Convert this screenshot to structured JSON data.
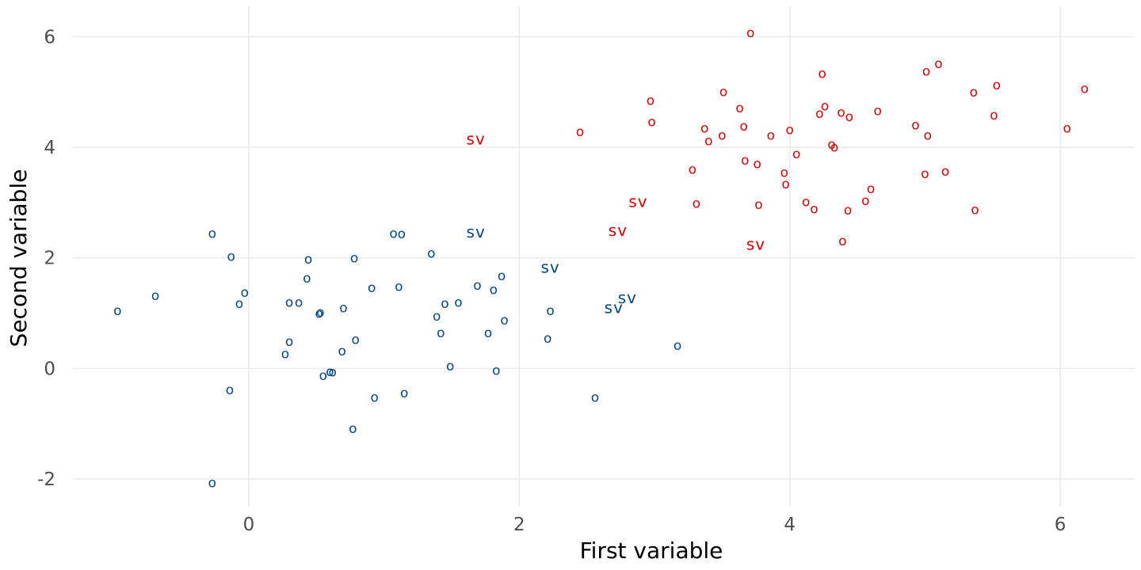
{
  "chart_data": {
    "type": "scatter",
    "title": "",
    "xlabel": "First variable",
    "ylabel": "Second variable",
    "xlim": [
      -1.3,
      6.55
    ],
    "ylim": [
      -2.5,
      6.55
    ],
    "x_ticks": [
      0,
      2,
      4,
      6
    ],
    "y_ticks": [
      -2,
      0,
      2,
      4,
      6
    ],
    "x_tick_labels": [
      "0",
      "2",
      "4",
      "6"
    ],
    "y_tick_labels": [
      "-2",
      "0",
      "2",
      "4",
      "6"
    ],
    "grid": true,
    "legend": "none",
    "point_symbol": "o",
    "support_vector_symbol": "sv",
    "series": [
      {
        "color": "#00468b",
        "points": [
          [
            -0.97,
            1.05
          ],
          [
            -0.69,
            1.32
          ],
          [
            -0.27,
            2.45
          ],
          [
            -0.13,
            2.03
          ],
          [
            -0.14,
            -0.38
          ],
          [
            -0.27,
            -2.06
          ],
          [
            -0.07,
            1.18
          ],
          [
            -0.03,
            1.38
          ],
          [
            0.27,
            0.27
          ],
          [
            0.3,
            0.49
          ],
          [
            0.3,
            1.2
          ],
          [
            0.37,
            1.2
          ],
          [
            0.43,
            1.64
          ],
          [
            0.44,
            1.98
          ],
          [
            0.52,
            1.0
          ],
          [
            0.53,
            1.02
          ],
          [
            0.55,
            -0.12
          ],
          [
            0.6,
            -0.05
          ],
          [
            0.62,
            -0.06
          ],
          [
            0.69,
            0.32
          ],
          [
            0.7,
            1.1
          ],
          [
            0.77,
            -1.08
          ],
          [
            0.78,
            2.0
          ],
          [
            0.79,
            0.53
          ],
          [
            0.91,
            1.47
          ],
          [
            0.93,
            -0.52
          ],
          [
            1.07,
            2.45
          ],
          [
            1.11,
            1.49
          ],
          [
            1.13,
            2.44
          ],
          [
            1.15,
            -0.44
          ],
          [
            1.35,
            2.09
          ],
          [
            1.39,
            0.95
          ],
          [
            1.42,
            0.65
          ],
          [
            1.45,
            1.18
          ],
          [
            1.49,
            0.05
          ],
          [
            1.55,
            1.2
          ],
          [
            1.69,
            1.51
          ],
          [
            1.77,
            0.65
          ],
          [
            1.81,
            1.43
          ],
          [
            1.83,
            -0.03
          ],
          [
            1.87,
            1.68
          ],
          [
            1.89,
            0.88
          ],
          [
            2.21,
            0.55
          ],
          [
            2.23,
            1.05
          ],
          [
            2.56,
            -0.52
          ],
          [
            3.17,
            0.42
          ]
        ],
        "support_vectors": [
          [
            1.68,
            2.47
          ],
          [
            2.23,
            1.83
          ],
          [
            2.7,
            1.1
          ],
          [
            2.8,
            1.28
          ]
        ]
      },
      {
        "color": "#e00000",
        "points": [
          [
            2.45,
            4.29
          ],
          [
            2.97,
            4.85
          ],
          [
            2.98,
            4.47
          ],
          [
            3.28,
            3.61
          ],
          [
            3.31,
            2.99
          ],
          [
            3.37,
            4.35
          ],
          [
            3.4,
            4.12
          ],
          [
            3.5,
            4.22
          ],
          [
            3.51,
            5.01
          ],
          [
            3.63,
            4.72
          ],
          [
            3.66,
            4.39
          ],
          [
            3.67,
            3.77
          ],
          [
            3.71,
            6.08
          ],
          [
            3.76,
            3.71
          ],
          [
            3.77,
            2.97
          ],
          [
            3.86,
            4.22
          ],
          [
            3.96,
            3.55
          ],
          [
            3.97,
            3.34
          ],
          [
            4.0,
            4.32
          ],
          [
            4.05,
            3.89
          ],
          [
            4.12,
            3.02
          ],
          [
            4.18,
            2.89
          ],
          [
            4.22,
            4.62
          ],
          [
            4.24,
            5.34
          ],
          [
            4.26,
            4.75
          ],
          [
            4.31,
            4.06
          ],
          [
            4.33,
            4.01
          ],
          [
            4.38,
            4.64
          ],
          [
            4.39,
            2.31
          ],
          [
            4.43,
            2.87
          ],
          [
            4.44,
            4.56
          ],
          [
            4.56,
            3.04
          ],
          [
            4.6,
            3.26
          ],
          [
            4.65,
            4.67
          ],
          [
            4.93,
            4.41
          ],
          [
            5.0,
            3.53
          ],
          [
            5.01,
            5.38
          ],
          [
            5.02,
            4.22
          ],
          [
            5.1,
            5.52
          ],
          [
            5.15,
            3.57
          ],
          [
            5.36,
            5.0
          ],
          [
            5.37,
            2.88
          ],
          [
            5.51,
            4.59
          ],
          [
            5.53,
            5.13
          ],
          [
            6.05,
            4.35
          ],
          [
            6.18,
            5.07
          ]
        ],
        "support_vectors": [
          [
            1.68,
            4.15
          ],
          [
            2.73,
            2.5
          ],
          [
            2.88,
            3.02
          ],
          [
            3.75,
            2.25
          ]
        ]
      }
    ]
  }
}
